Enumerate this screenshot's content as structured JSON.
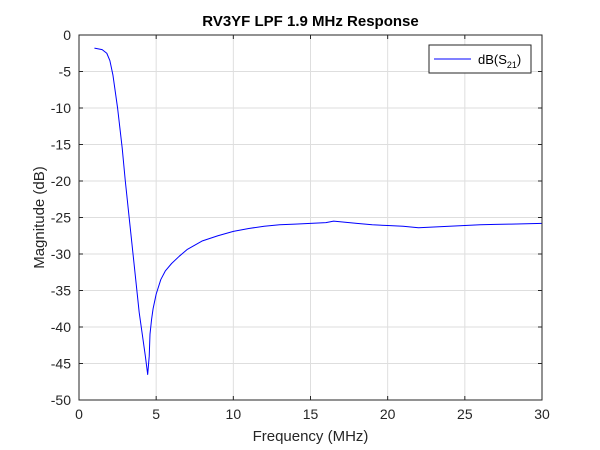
{
  "chart_data": {
    "type": "line",
    "title": "RV3YF LPF 1.9 MHz Response",
    "xlabel": "Frequency (MHz)",
    "ylabel": "Magnitude (dB)",
    "xlim": [
      0,
      30
    ],
    "ylim": [
      -50,
      0
    ],
    "xticks": [
      0,
      5,
      10,
      15,
      20,
      25,
      30
    ],
    "yticks": [
      0,
      -5,
      -10,
      -15,
      -20,
      -25,
      -30,
      -35,
      -40,
      -45,
      -50
    ],
    "grid": true,
    "legend": {
      "placement": "top-right",
      "entries": [
        {
          "text_main": "dB(S",
          "text_sub": "21",
          "text_end": ")"
        }
      ]
    },
    "series": [
      {
        "color": "#0000ff",
        "x": [
          1.0,
          1.5,
          1.8,
          2.0,
          2.2,
          2.5,
          2.8,
          3.0,
          3.3,
          3.6,
          3.9,
          4.1,
          4.3,
          4.45,
          4.55,
          4.6,
          4.7,
          4.8,
          5.0,
          5.3,
          5.6,
          6.0,
          6.5,
          7.0,
          7.5,
          8.0,
          9.0,
          10.0,
          11.0,
          12.0,
          13.0,
          14.0,
          15.0,
          16.0,
          16.5,
          17.0,
          18.0,
          19.0,
          20.0,
          21.0,
          22.0,
          23.0,
          24.0,
          25.0,
          26.0,
          27.0,
          28.0,
          29.0,
          30.0
        ],
        "y": [
          -1.8,
          -2.0,
          -2.5,
          -3.5,
          -5.5,
          -10.0,
          -15.5,
          -20.0,
          -26.0,
          -32.0,
          -38.0,
          -41.0,
          -44.0,
          -46.5,
          -44.0,
          -41.0,
          -39.0,
          -37.5,
          -35.5,
          -33.5,
          -32.3,
          -31.3,
          -30.3,
          -29.4,
          -28.8,
          -28.2,
          -27.5,
          -26.9,
          -26.5,
          -26.2,
          -26.0,
          -25.9,
          -25.8,
          -25.7,
          -25.5,
          -25.6,
          -25.8,
          -26.0,
          -26.1,
          -26.2,
          -26.4,
          -26.3,
          -26.2,
          -26.1,
          -26.0,
          -25.95,
          -25.9,
          -25.85,
          -25.8
        ]
      }
    ]
  }
}
